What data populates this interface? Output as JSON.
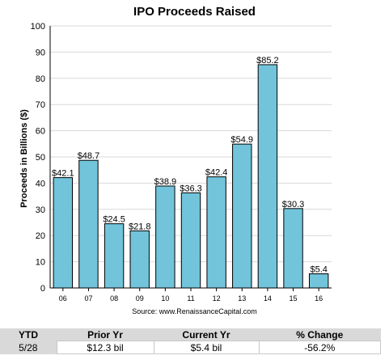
{
  "chart_data": {
    "type": "bar",
    "title": "IPO Proceeds Raised",
    "ylabel": "Proceeds in Billions ($)",
    "xlabel": "",
    "ylim": [
      0,
      100
    ],
    "yticks": [
      0,
      10,
      20,
      30,
      40,
      50,
      60,
      70,
      80,
      90,
      100
    ],
    "grid": true,
    "categories": [
      "06",
      "07",
      "08",
      "09",
      "10",
      "11",
      "12",
      "13",
      "14",
      "15",
      "16"
    ],
    "values": [
      42.1,
      48.7,
      24.5,
      21.8,
      38.9,
      36.3,
      42.4,
      54.9,
      85.2,
      30.3,
      5.4
    ],
    "value_labels": [
      "$42.1",
      "$48.7",
      "$24.5",
      "$21.8",
      "$38.9",
      "$36.3",
      "$42.4",
      "$54.9",
      "$85.2",
      "$30.3",
      "$5.4"
    ],
    "bar_color": "#72c4db",
    "source": "Source: www.RenaissanceCapital.com"
  },
  "ytd_table": {
    "headers": [
      "YTD",
      "Prior Yr",
      "Current Yr",
      "% Change"
    ],
    "row": [
      "5/28",
      "$12.3 bil",
      "$5.4 bil",
      "-56.2%"
    ]
  }
}
